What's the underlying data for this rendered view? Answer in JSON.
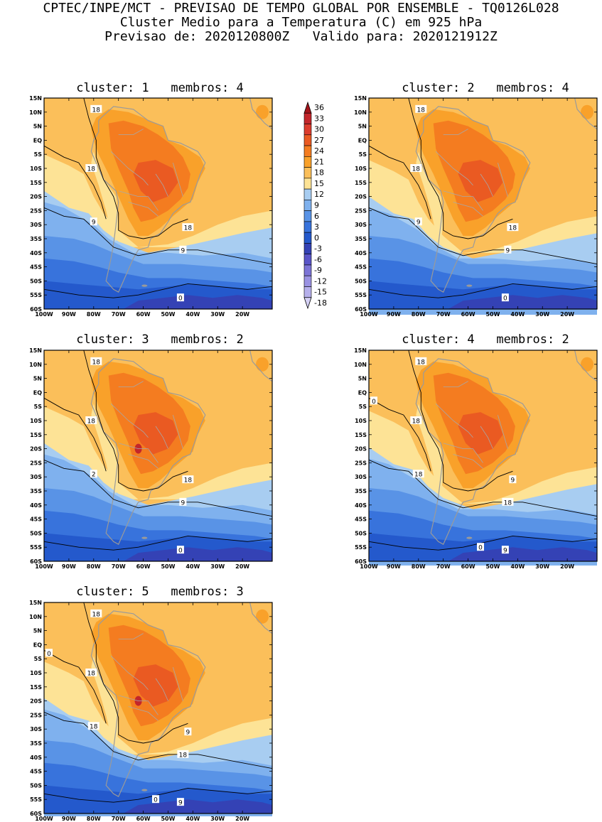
{
  "header": {
    "line1": "CPTEC/INPE/MCT - PREVISAO DE TEMPO GLOBAL POR ENSEMBLE - TQ0126L028",
    "line2": "Cluster Medio para a Temperatura (C) em 925 hPa",
    "line3": "Previsao de: 2020120800Z   Valido para: 2020121912Z"
  },
  "axes": {
    "lat_labels": [
      "15N",
      "10N",
      "5N",
      "EQ",
      "5S",
      "10S",
      "15S",
      "20S",
      "25S",
      "30S",
      "35S",
      "40S",
      "45S",
      "50S",
      "55S",
      "60S"
    ],
    "lon_labels": [
      "100W",
      "90W",
      "80W",
      "70W",
      "60W",
      "50W",
      "40W",
      "30W",
      "20W"
    ]
  },
  "colorbar": {
    "labels": [
      "36",
      "33",
      "30",
      "27",
      "24",
      "21",
      "18",
      "15",
      "12",
      "9",
      "6",
      "3",
      "0",
      "-3",
      "-6",
      "-9",
      "-12",
      "-15",
      "-18"
    ],
    "colors": [
      "#a3141a",
      "#c3262b",
      "#dc3c2d",
      "#ea5a22",
      "#f47c20",
      "#f9a12a",
      "#fbbf5a",
      "#fde396",
      "#a8cdf1",
      "#7fb1ee",
      "#5993e6",
      "#3873dc",
      "#2459cc",
      "#3442b5",
      "#5a55c8",
      "#7c74d6",
      "#9a92e2",
      "#b6b0ec",
      "#d6d2f6"
    ]
  },
  "panels": [
    {
      "title": "cluster: 1   membros: 4",
      "contour_labels": [
        "18",
        "18",
        "9",
        "18",
        "9",
        "0"
      ]
    },
    {
      "title": "cluster: 2   membros: 4",
      "contour_labels": [
        "18",
        "18",
        "9",
        "18",
        "9",
        "0"
      ]
    },
    {
      "title": "cluster: 3   membros: 2",
      "contour_labels": [
        "18",
        "18",
        "2",
        "18",
        "9",
        "0"
      ]
    },
    {
      "title": "cluster: 4   membros: 2",
      "contour_labels": [
        "18",
        "18",
        "18",
        "9",
        "18",
        "9",
        "0",
        "0"
      ]
    },
    {
      "title": "cluster: 5   membros: 3",
      "contour_labels": [
        "18",
        "18",
        "18",
        "9",
        "18",
        "9",
        "0",
        "0"
      ]
    }
  ]
}
